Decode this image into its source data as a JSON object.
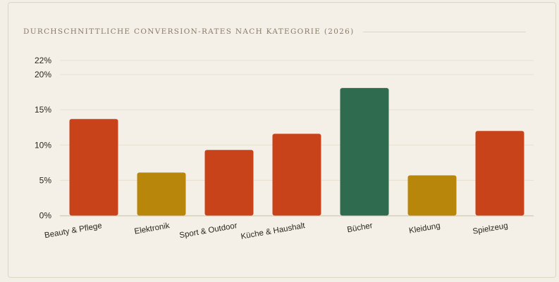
{
  "chart_data": {
    "type": "bar",
    "title": "DURCHSCHNITTLICHE CONVERSION-RATES NACH KATEGORIE (2026)",
    "xlabel": "",
    "ylabel": "",
    "ylim": [
      0,
      22
    ],
    "yticks": [
      0,
      5,
      10,
      15,
      20,
      22
    ],
    "ytick_labels": [
      "0%",
      "5%",
      "10%",
      "15%",
      "20%",
      "22%"
    ],
    "grid": true,
    "categories": [
      "Beauty & Pflege",
      "Elektronik",
      "Sport & Outdoor",
      "Küche & Haushalt",
      "Bücher",
      "Kleidung",
      "Spielzeug"
    ],
    "values": [
      13.7,
      6.1,
      9.3,
      11.6,
      18.1,
      5.7,
      12.0
    ],
    "colors": [
      "#c8431a",
      "#b8860b",
      "#c8431a",
      "#c8431a",
      "#2e6b4f",
      "#b8860b",
      "#c8431a"
    ]
  }
}
